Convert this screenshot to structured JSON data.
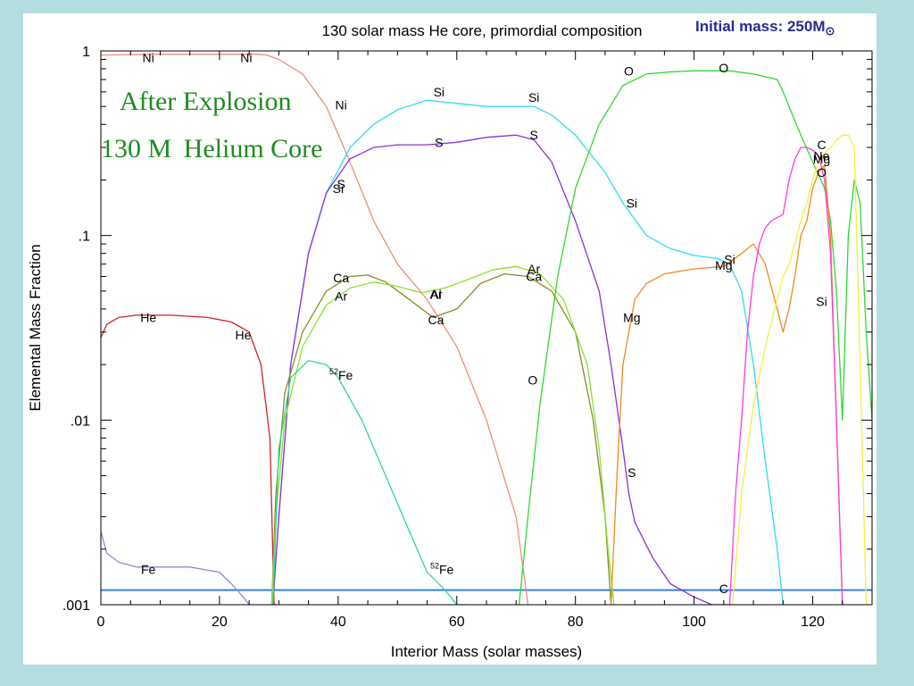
{
  "header": {
    "title": "130 solar mass He core, primordial composition",
    "initial_mass_prefix": "Initial mass: 250M",
    "initial_mass_symbol": "⊙"
  },
  "overlay": {
    "line1": "After Explosion",
    "line2": "130 M   Helium Core"
  },
  "chart_data": {
    "type": "line",
    "title": "130 solar mass He core, primordial composition",
    "xlabel": "Interior Mass (solar masses)",
    "ylabel": "Elemental Mass Fraction",
    "xlim": [
      0,
      130
    ],
    "ylim": [
      0.001,
      1
    ],
    "yscale": "log",
    "x_ticks": [
      0,
      20,
      40,
      60,
      80,
      100,
      120
    ],
    "x_tick_labels": [
      "0",
      "20",
      "40",
      "60",
      "80",
      "100",
      "120"
    ],
    "y_ticks": [
      0.001,
      0.01,
      0.1,
      1
    ],
    "y_tick_labels": [
      ".001",
      ".01",
      ".1",
      "1"
    ],
    "reference_line": 0.0012,
    "series": [
      {
        "name": "Ni",
        "color": "#f08a80",
        "x": [
          0,
          10,
          20,
          26,
          28,
          30,
          34,
          38,
          42,
          46,
          50,
          55,
          60,
          65,
          70,
          72
        ],
        "y": [
          0.95,
          0.96,
          0.96,
          0.96,
          0.95,
          0.9,
          0.75,
          0.5,
          0.25,
          0.12,
          0.07,
          0.045,
          0.025,
          0.01,
          0.003,
          0.001
        ]
      },
      {
        "name": "He",
        "color": "#d42020",
        "x": [
          0,
          1,
          3,
          6,
          12,
          18,
          22,
          25,
          27,
          28.5,
          29.2
        ],
        "y": [
          0.028,
          0.033,
          0.036,
          0.037,
          0.037,
          0.036,
          0.034,
          0.03,
          0.02,
          0.008,
          0.001
        ]
      },
      {
        "name": "Fe",
        "color": "#8a8ae0",
        "x": [
          0,
          1,
          3,
          6,
          10,
          15,
          20,
          22,
          24,
          25
        ],
        "y": [
          0.0025,
          0.0019,
          0.0017,
          0.0016,
          0.0016,
          0.0016,
          0.0015,
          0.0013,
          0.0011,
          0.001
        ]
      },
      {
        "name": "Si",
        "color": "#30dcec",
        "x": [
          29,
          30,
          32,
          35,
          38,
          42,
          46,
          50,
          55,
          60,
          65,
          70,
          73,
          76,
          80,
          85,
          88,
          92,
          96,
          100,
          104,
          106,
          108,
          110,
          112,
          114,
          115
        ],
        "y": [
          0.001,
          0.003,
          0.02,
          0.08,
          0.17,
          0.3,
          0.4,
          0.48,
          0.54,
          0.52,
          0.5,
          0.5,
          0.5,
          0.45,
          0.35,
          0.22,
          0.15,
          0.1,
          0.085,
          0.078,
          0.075,
          0.07,
          0.05,
          0.02,
          0.006,
          0.002,
          0.001
        ]
      },
      {
        "name": "S",
        "color": "#8a30d8",
        "x": [
          29,
          30,
          32,
          35,
          38,
          42,
          46,
          50,
          55,
          60,
          65,
          70,
          73,
          76,
          80,
          84,
          86,
          88,
          89,
          90,
          93,
          96,
          100,
          103,
          106
        ],
        "y": [
          0.001,
          0.003,
          0.02,
          0.08,
          0.17,
          0.26,
          0.3,
          0.31,
          0.31,
          0.32,
          0.34,
          0.35,
          0.33,
          0.25,
          0.12,
          0.05,
          0.02,
          0.007,
          0.004,
          0.0028,
          0.0018,
          0.0013,
          0.0011,
          0.001,
          0.001
        ]
      },
      {
        "name": "Ca",
        "color": "#8a8a28",
        "x": [
          28.8,
          29.5,
          31,
          34,
          38,
          42,
          45,
          48,
          52,
          56,
          60,
          64,
          68,
          72,
          76,
          80,
          83,
          85,
          86
        ],
        "y": [
          0.001,
          0.004,
          0.014,
          0.03,
          0.05,
          0.06,
          0.061,
          0.056,
          0.045,
          0.036,
          0.04,
          0.055,
          0.062,
          0.06,
          0.05,
          0.03,
          0.01,
          0.003,
          0.001
        ]
      },
      {
        "name": "Ar",
        "color": "#8ae030",
        "x": [
          28.8,
          29.5,
          31,
          34,
          38,
          42,
          46,
          50,
          54,
          58,
          62,
          66,
          70,
          74,
          78,
          82,
          84,
          85.5,
          86.5
        ],
        "y": [
          0.001,
          0.003,
          0.01,
          0.025,
          0.042,
          0.052,
          0.056,
          0.053,
          0.049,
          0.052,
          0.058,
          0.065,
          0.068,
          0.062,
          0.045,
          0.02,
          0.007,
          0.002,
          0.001
        ]
      },
      {
        "name": "52Fe",
        "color": "#30d890",
        "x": [
          29,
          30,
          32,
          35,
          38,
          40,
          44,
          48,
          52,
          55,
          58,
          60,
          62
        ],
        "y": [
          0.001,
          0.007,
          0.017,
          0.021,
          0.02,
          0.017,
          0.01,
          0.005,
          0.0025,
          0.0015,
          0.0012,
          0.001,
          0.001
        ]
      },
      {
        "name": "O",
        "color": "#30d830",
        "x": [
          70.5,
          72,
          74,
          77,
          80,
          84,
          88,
          92,
          96,
          100,
          104,
          106,
          110,
          114,
          115,
          116,
          118,
          120,
          122,
          123,
          124,
          125,
          126,
          127,
          128,
          129,
          130
        ],
        "y": [
          0.001,
          0.003,
          0.012,
          0.06,
          0.18,
          0.4,
          0.65,
          0.75,
          0.77,
          0.78,
          0.78,
          0.78,
          0.75,
          0.7,
          0.6,
          0.5,
          0.35,
          0.25,
          0.18,
          0.12,
          0.05,
          0.01,
          0.1,
          0.2,
          0.15,
          0.03,
          0.01
        ]
      },
      {
        "name": "Mg",
        "color": "#f08a20",
        "x": [
          86,
          87,
          88,
          90,
          92,
          95,
          100,
          105,
          108,
          110,
          112,
          114,
          115,
          116,
          117,
          118,
          119,
          120,
          121,
          122,
          123,
          124,
          125
        ],
        "y": [
          0.001,
          0.005,
          0.02,
          0.045,
          0.055,
          0.062,
          0.066,
          0.068,
          0.08,
          0.09,
          0.07,
          0.04,
          0.03,
          0.04,
          0.06,
          0.1,
          0.12,
          0.18,
          0.22,
          0.24,
          0.1,
          0.01,
          0.001
        ]
      },
      {
        "name": "C",
        "color": "#ff3ae0",
        "x": [
          106,
          107,
          108,
          109,
          110,
          111,
          112,
          113,
          114,
          115,
          116,
          117,
          118,
          119,
          120,
          121,
          122,
          123,
          124,
          125
        ],
        "y": [
          0.001,
          0.004,
          0.01,
          0.03,
          0.06,
          0.09,
          0.11,
          0.12,
          0.125,
          0.13,
          0.2,
          0.26,
          0.3,
          0.3,
          0.29,
          0.27,
          0.2,
          0.08,
          0.01,
          0.001
        ]
      },
      {
        "name": "Ne",
        "color": "#f0f040",
        "x": [
          106.5,
          108,
          110,
          112,
          114,
          115,
          116,
          117,
          118,
          119,
          120,
          121,
          122,
          123,
          124,
          125,
          126,
          127,
          128,
          129
        ],
        "y": [
          0.001,
          0.004,
          0.012,
          0.025,
          0.045,
          0.06,
          0.07,
          0.09,
          0.12,
          0.15,
          0.2,
          0.25,
          0.28,
          0.3,
          0.33,
          0.35,
          0.35,
          0.3,
          0.02,
          0.001
        ]
      }
    ],
    "curve_labels": [
      {
        "text": "Ni",
        "x": 8,
        "y": 0.92
      },
      {
        "text": "Ni",
        "x": 24.5,
        "y": 0.92
      },
      {
        "text": "Ni",
        "x": 40.5,
        "y": 0.51
      },
      {
        "text": "He",
        "x": 8,
        "y": 0.036
      },
      {
        "text": "He",
        "x": 24,
        "y": 0.029
      },
      {
        "text": "Fe",
        "x": 8,
        "y": 0.00155
      },
      {
        "text": "Si",
        "x": 57,
        "y": 0.6
      },
      {
        "text": "Si",
        "x": 73,
        "y": 0.56
      },
      {
        "text": "Si",
        "x": 40,
        "y": 0.18
      },
      {
        "text": "Si",
        "x": 89.5,
        "y": 0.15
      },
      {
        "text": "Si",
        "x": 106,
        "y": 0.074
      },
      {
        "text": "Si",
        "x": 121.5,
        "y": 0.044
      },
      {
        "text": "S",
        "x": 57,
        "y": 0.32
      },
      {
        "text": "S",
        "x": 73,
        "y": 0.35
      },
      {
        "text": "S",
        "x": 40.5,
        "y": 0.19
      },
      {
        "text": "S",
        "x": 89.5,
        "y": 0.0052
      },
      {
        "text": "Ca",
        "x": 40.5,
        "y": 0.059
      },
      {
        "text": "Ca",
        "x": 56.5,
        "y": 0.035
      },
      {
        "text": "Ca",
        "x": 73,
        "y": 0.06
      },
      {
        "text": "Ar",
        "x": 40.5,
        "y": 0.047
      },
      {
        "text": "Ar",
        "x": 56.5,
        "y": 0.048
      },
      {
        "text": "Ar",
        "x": 73,
        "y": 0.066
      },
      {
        "text": "Al",
        "x": 56.5,
        "y": 0.048
      },
      {
        "text": "O",
        "x": 89,
        "y": 0.78
      },
      {
        "text": "O",
        "x": 105,
        "y": 0.81
      },
      {
        "text": "O",
        "x": 72.8,
        "y": 0.0165
      },
      {
        "text": "O",
        "x": 121.5,
        "y": 0.22
      },
      {
        "text": "Mg",
        "x": 89.5,
        "y": 0.036
      },
      {
        "text": "Mg",
        "x": 105,
        "y": 0.069
      },
      {
        "text": "Mg",
        "x": 121.5,
        "y": 0.26
      },
      {
        "text": "Ne",
        "x": 121.5,
        "y": 0.27
      },
      {
        "text": "C",
        "x": 121.5,
        "y": 0.31
      },
      {
        "text": "C",
        "x": 105,
        "y": 0.00122
      }
    ],
    "fe52_labels": [
      {
        "prefix": "52",
        "text": "Fe",
        "x": 40.5,
        "y": 0.0175
      },
      {
        "prefix": "52",
        "text": "Fe",
        "x": 57.5,
        "y": 0.00155
      }
    ]
  }
}
